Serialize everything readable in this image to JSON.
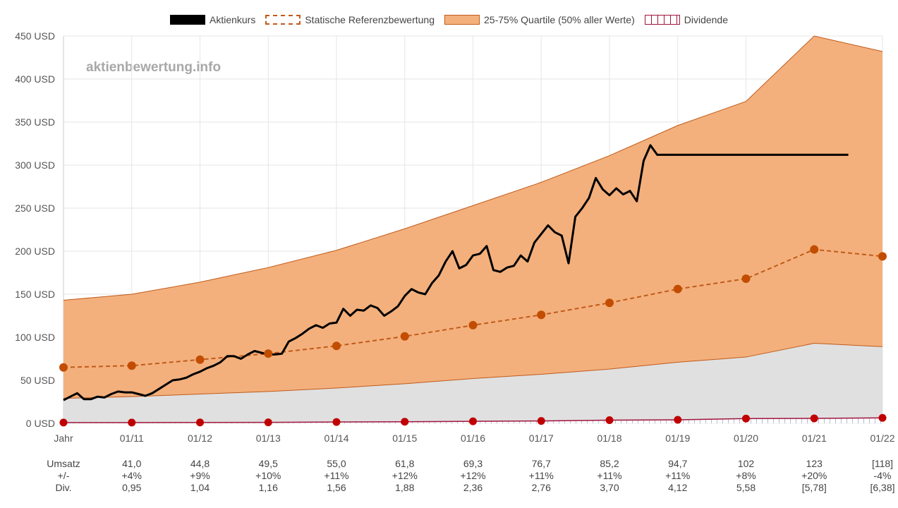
{
  "legend": {
    "price": "Aktienkurs",
    "reference": "Statische Referenzbewertung",
    "quartile": "25-75% Quartile (50% aller Werte)",
    "dividend": "Dividende"
  },
  "watermark": "aktienbewertung.info",
  "colors": {
    "price": "#000000",
    "reference": "#c25a1a",
    "quartile_fill": "#f3b07c",
    "lower_fill": "#e0e0e0",
    "dividend": "#c00000"
  },
  "chart_data": {
    "type": "line",
    "y_unit_suffix": " USD",
    "ylim": [
      0,
      450
    ],
    "y_ticks": [
      "0 USD",
      "50 USD",
      "100 USD",
      "150 USD",
      "200 USD",
      "250 USD",
      "300 USD",
      "350 USD",
      "400 USD",
      "450 USD"
    ],
    "y_tick_values": [
      0,
      50,
      100,
      150,
      200,
      250,
      300,
      350,
      400,
      450
    ],
    "x_ticks": [
      "Jahr",
      "01/11",
      "01/12",
      "01/13",
      "01/14",
      "01/15",
      "01/16",
      "01/17",
      "01/18",
      "01/19",
      "01/20",
      "01/21",
      "01/22"
    ],
    "x_range": [
      2010,
      2022
    ],
    "grid": true,
    "legend_position": "top",
    "series": [
      {
        "name": "Aktienkurs",
        "x": [
          2010.0,
          2010.1,
          2010.2,
          2010.3,
          2010.4,
          2010.5,
          2010.6,
          2010.7,
          2010.8,
          2010.9,
          2011.0,
          2011.1,
          2011.2,
          2011.3,
          2011.4,
          2011.5,
          2011.6,
          2011.7,
          2011.8,
          2011.9,
          2012.0,
          2012.1,
          2012.2,
          2012.3,
          2012.4,
          2012.5,
          2012.6,
          2012.7,
          2012.8,
          2012.9,
          2013.0,
          2013.1,
          2013.2,
          2013.3,
          2013.4,
          2013.5,
          2013.6,
          2013.7,
          2013.8,
          2013.9,
          2014.0,
          2014.1,
          2014.2,
          2014.3,
          2014.4,
          2014.5,
          2014.6,
          2014.7,
          2014.8,
          2014.9,
          2015.0,
          2015.1,
          2015.2,
          2015.3,
          2015.4,
          2015.5,
          2015.6,
          2015.7,
          2015.8,
          2015.9,
          2016.0,
          2016.1,
          2016.2,
          2016.3,
          2016.4,
          2016.5,
          2016.6,
          2016.7,
          2016.8,
          2016.9,
          2017.0,
          2017.1,
          2017.2,
          2017.3,
          2017.4,
          2017.5,
          2017.6,
          2017.7,
          2017.8,
          2017.9,
          2018.0,
          2018.1,
          2018.2,
          2018.3,
          2018.4,
          2018.5,
          2018.6,
          2018.7,
          2018.8,
          2018.9,
          2019.0,
          2019.1,
          2019.2,
          2019.3,
          2019.4,
          2019.5,
          2019.6,
          2019.7,
          2019.8,
          2019.9,
          2020.0,
          2020.1,
          2020.2,
          2020.3,
          2020.4,
          2020.5,
          2020.6,
          2020.7,
          2020.8,
          2020.9,
          2021.0,
          2021.1,
          2021.2,
          2021.3,
          2021.4,
          2021.5
        ],
        "values": [
          27,
          31,
          35,
          28,
          28,
          31,
          30,
          34,
          37,
          36,
          36,
          34,
          32,
          35,
          40,
          45,
          50,
          51,
          53,
          57,
          60,
          64,
          67,
          71,
          78,
          78,
          75,
          80,
          84,
          82,
          80,
          80,
          81,
          95,
          99,
          104,
          110,
          114,
          111,
          116,
          117,
          133,
          125,
          132,
          131,
          137,
          134,
          125,
          130,
          136,
          148,
          156,
          152,
          150,
          163,
          172,
          188,
          200,
          180,
          184,
          195,
          197,
          206,
          178,
          176,
          181,
          183,
          195,
          188,
          210,
          220,
          230,
          222,
          218,
          186,
          240,
          250,
          262,
          285,
          272,
          265,
          273,
          266,
          270,
          258,
          305,
          323,
          312,
          312,
          312,
          312,
          312,
          312,
          312,
          312,
          312,
          312,
          312,
          312,
          312,
          312,
          312,
          312,
          312,
          312,
          312,
          312,
          312,
          312,
          312,
          312,
          312,
          312,
          312,
          312,
          312
        ]
      },
      {
        "name": "Statische Referenzbewertung",
        "x": [
          2010,
          2011,
          2012,
          2013,
          2014,
          2015,
          2016,
          2017,
          2018,
          2019,
          2020,
          2021,
          2022
        ],
        "values": [
          65,
          67,
          74,
          81,
          90,
          101,
          114,
          126,
          140,
          156,
          168,
          202,
          194
        ]
      },
      {
        "name": "25-75% Quartile (50% aller Werte)",
        "x": [
          2010,
          2011,
          2012,
          2013,
          2014,
          2015,
          2016,
          2017,
          2018,
          2019,
          2020,
          2021,
          2022
        ],
        "upper": [
          143,
          150,
          164,
          181,
          201,
          226,
          253,
          280,
          311,
          346,
          374,
          450,
          432
        ],
        "lower": [
          29,
          31,
          34,
          37,
          41,
          46,
          52,
          57,
          63,
          71,
          77,
          93,
          89
        ]
      },
      {
        "name": "Dividende",
        "x": [
          2010,
          2011,
          2012,
          2013,
          2014,
          2015,
          2016,
          2017,
          2018,
          2019,
          2020,
          2021,
          2022
        ],
        "values": [
          0.9,
          0.95,
          1.04,
          1.16,
          1.56,
          1.88,
          2.36,
          2.76,
          3.7,
          4.12,
          5.58,
          5.78,
          6.38
        ]
      }
    ]
  },
  "table": {
    "rows": [
      {
        "label": "Umsatz",
        "values": [
          "41,0",
          "44,8",
          "49,5",
          "55,0",
          "61,8",
          "69,3",
          "76,7",
          "85,2",
          "94,7",
          "102",
          "123",
          "[118]"
        ]
      },
      {
        "label": "+/-",
        "values": [
          "+4%",
          "+9%",
          "+10%",
          "+11%",
          "+12%",
          "+12%",
          "+11%",
          "+11%",
          "+11%",
          "+8%",
          "+20%",
          "-4%"
        ]
      },
      {
        "label": "Div.",
        "values": [
          "0,95",
          "1,04",
          "1,16",
          "1,56",
          "1,88",
          "2,36",
          "2,76",
          "3,70",
          "4,12",
          "5,58",
          "[5,78]",
          "[6,38]"
        ]
      }
    ]
  }
}
